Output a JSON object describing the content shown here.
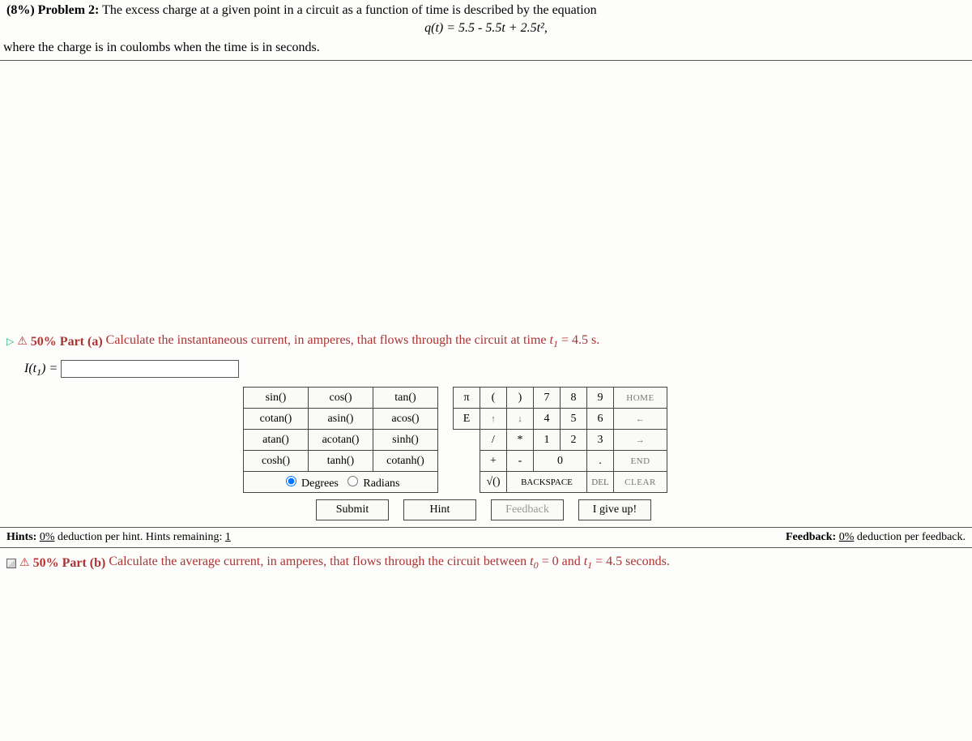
{
  "problem": {
    "percent": "(8%)",
    "label": "Problem 2:",
    "text1": "The excess charge at a given point in a circuit as a function of time is described by the equation",
    "equation": "q(t) = 5.5 - 5.5t + 2.5t²,",
    "text2": "where the charge is in coulombs when the time is in seconds."
  },
  "partA": {
    "triangle": "▷",
    "warn": "⚠",
    "pct": "50%",
    "label": "Part (a)",
    "text": "Calculate the instantaneous current, in amperes, that flows through the circuit at time t₁ = 4.5 s.",
    "lhs": "I(t₁) = ",
    "input_value": ""
  },
  "funcpad": {
    "r1": [
      "sin()",
      "cos()",
      "tan()"
    ],
    "r2": [
      "cotan()",
      "asin()",
      "acos()"
    ],
    "r3": [
      "atan()",
      "acotan()",
      "sinh()"
    ],
    "r4": [
      "cosh()",
      "tanh()",
      "cotanh()"
    ],
    "deg": "Degrees",
    "rad": "Radians"
  },
  "numpad": {
    "r1": [
      "π",
      "(",
      ")",
      "7",
      "8",
      "9",
      "HOME"
    ],
    "r2": [
      "E",
      "↑",
      "↓",
      "4",
      "5",
      "6",
      "←"
    ],
    "r3": [
      "",
      "/",
      "*",
      "1",
      "2",
      "3",
      "→"
    ],
    "r4": [
      "",
      "+",
      "-",
      "0",
      ".",
      "END"
    ],
    "r5": [
      "√()",
      "BACKSPACE",
      "DEL",
      "CLEAR"
    ]
  },
  "buttons": {
    "submit": "Submit",
    "hint": "Hint",
    "feedback": "Feedback",
    "giveup": "I give up!"
  },
  "hints": {
    "left_label": "Hints:",
    "left_text1": " 0% deduction per hint. Hints remaining: ",
    "left_link": "1",
    "right_label": "Feedback:",
    "right_text": " 0% deduction per feedback."
  },
  "partB": {
    "warn": "⚠",
    "pct": "50%",
    "label": "Part (b)",
    "text": "Calculate the average current, in amperes, that flows through the circuit between t₀ = 0 and t₁ = 4.5 seconds."
  }
}
